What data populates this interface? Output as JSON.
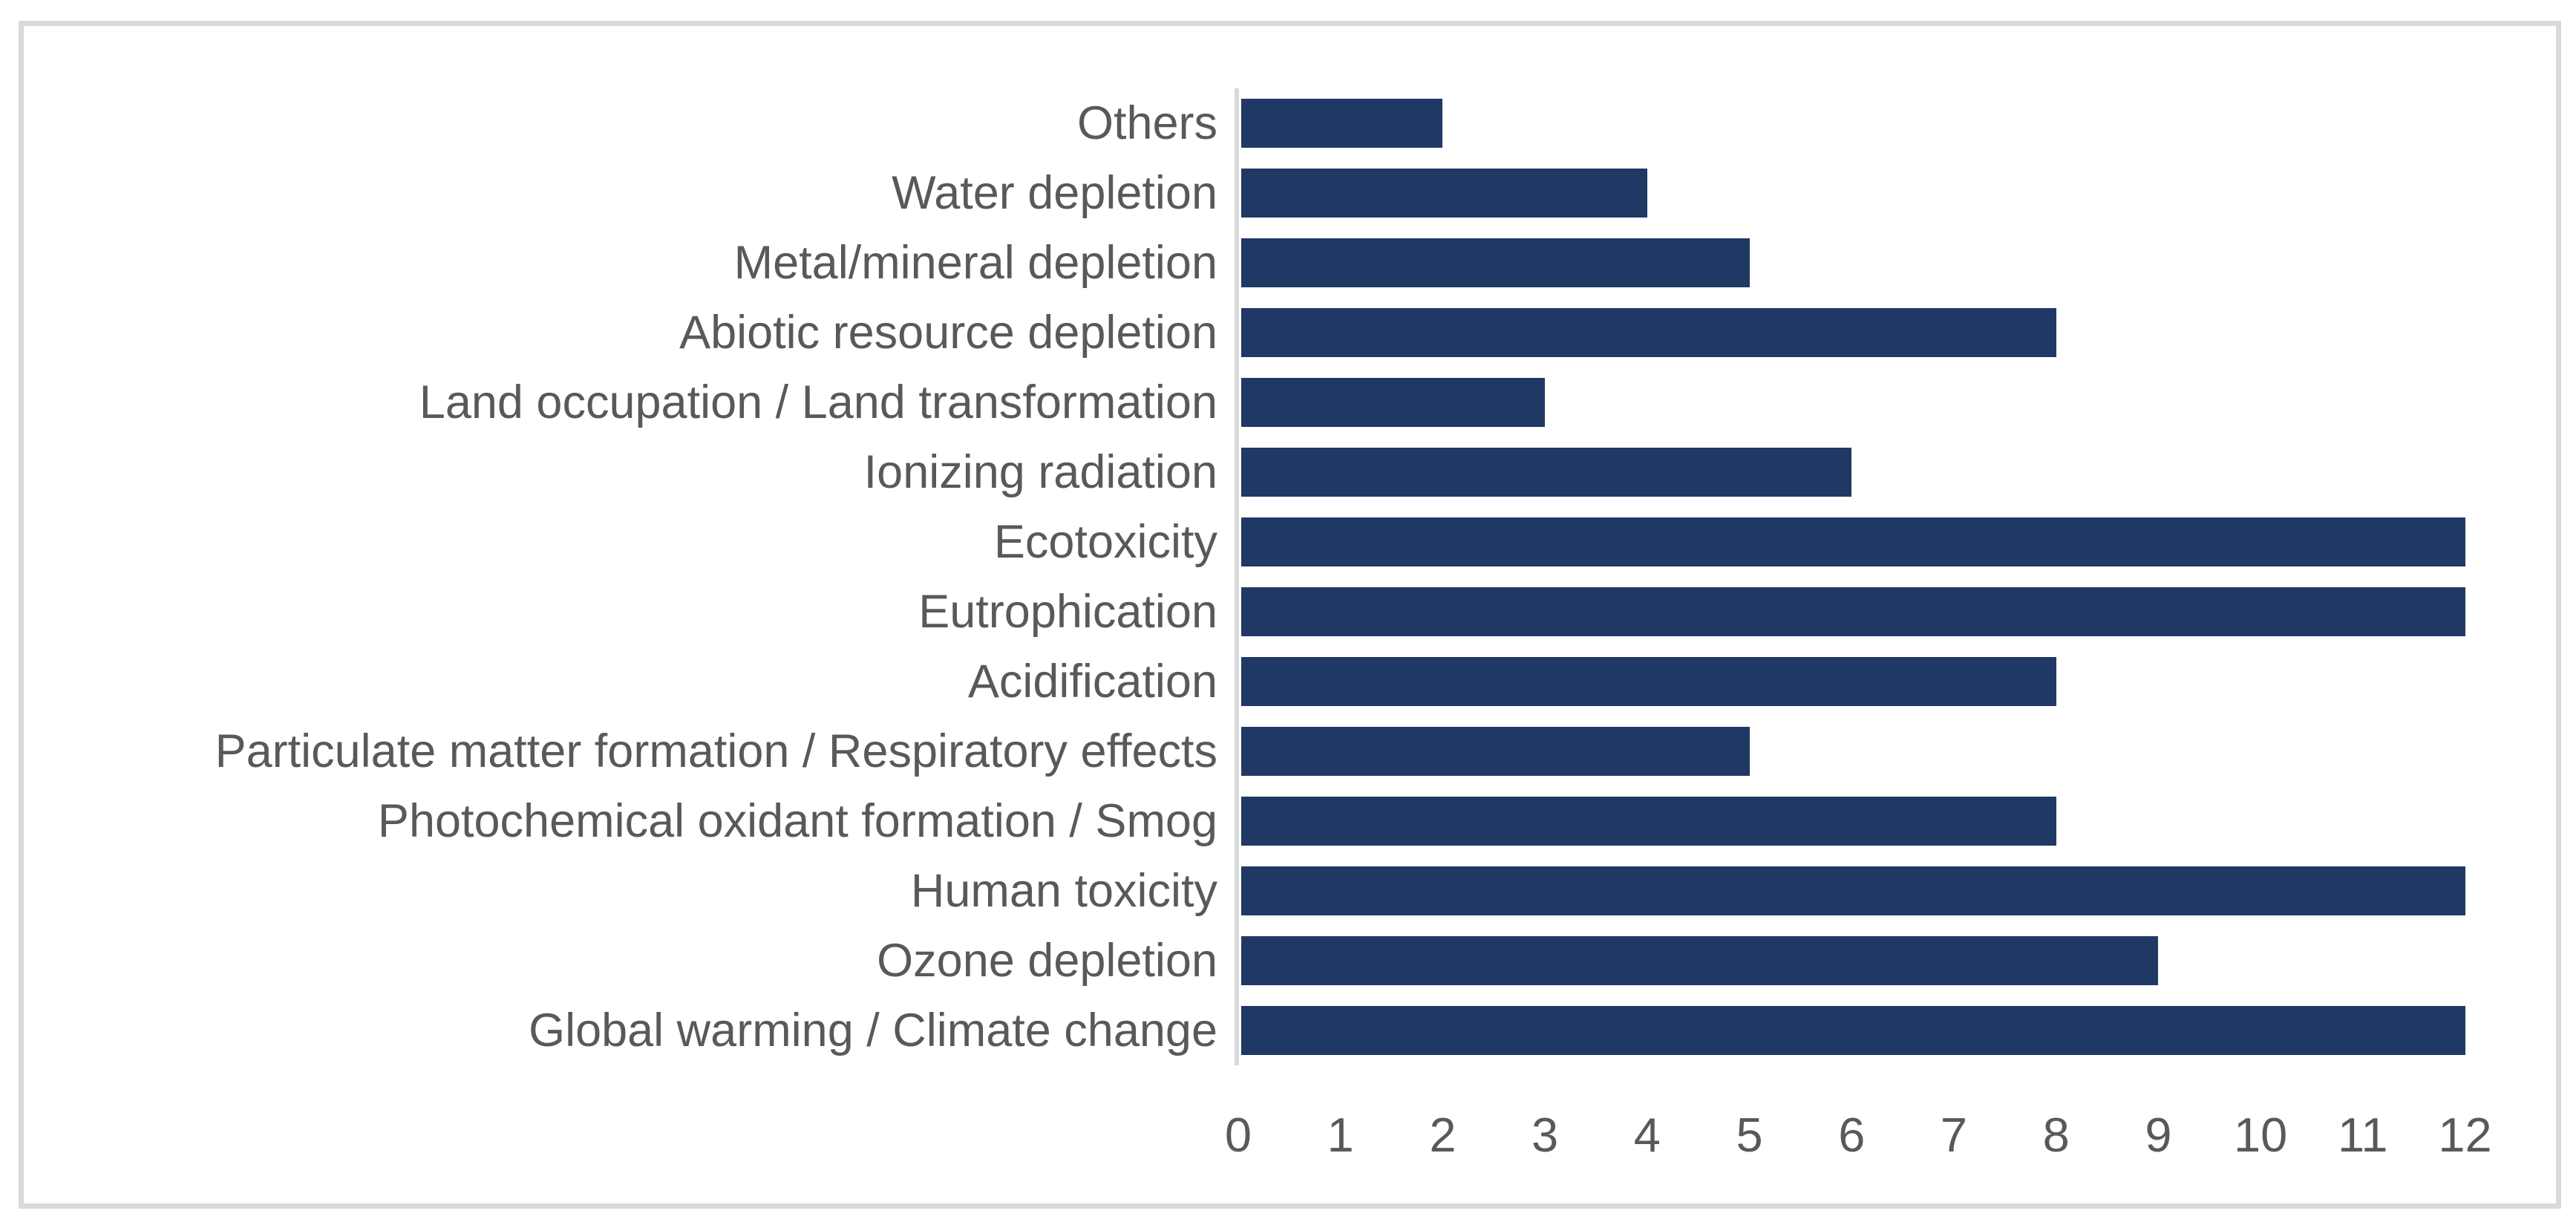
{
  "chart_data": {
    "type": "bar",
    "orientation": "horizontal",
    "title": "",
    "xlabel": "",
    "ylabel": "",
    "categories": [
      "Others",
      "Water depletion",
      "Metal/mineral depletion",
      "Abiotic resource depletion",
      "Land occupation / Land transformation",
      "Ionizing radiation",
      "Ecotoxicity",
      "Eutrophication",
      "Acidification",
      "Particulate matter formation / Respiratory effects",
      "Photochemical oxidant formation / Smog",
      "Human toxicity",
      "Ozone depletion",
      "Global warming / Climate change"
    ],
    "values": [
      2,
      4,
      5,
      8,
      3,
      6,
      12,
      12,
      8,
      5,
      8,
      12,
      9,
      12
    ],
    "xlim": [
      0,
      12
    ],
    "x_ticks": [
      0,
      1,
      2,
      3,
      4,
      5,
      6,
      7,
      8,
      9,
      10,
      11,
      12
    ],
    "grid": "off",
    "legend": "none",
    "colors": {
      "bar": "#203864",
      "axis_line": "#d9d9d9",
      "frame_border": "#d9d9d9",
      "category_label": "#595959",
      "tick_label": "#595959",
      "background": "#ffffff"
    }
  }
}
